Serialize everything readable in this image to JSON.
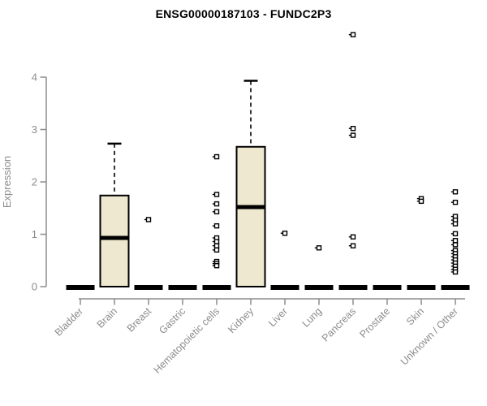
{
  "chart_data": {
    "type": "boxplot",
    "title": "ENSG00000187103 - FUNDC2P3",
    "xlabel": "",
    "ylabel": "Expression",
    "ylim": [
      0,
      4
    ],
    "yticks": [
      0,
      1,
      2,
      3,
      4
    ],
    "grid": false,
    "legend": null,
    "categories": [
      "Bladder",
      "Brain",
      "Breast",
      "Gastric",
      "Hematopoietic cells",
      "Kidney",
      "Liver",
      "Lung",
      "Pancreas",
      "Prostate",
      "Skin",
      "Unknown / Other"
    ],
    "boxes": [
      {
        "category": "Bladder",
        "min": 0,
        "q1": 0,
        "median": 0,
        "q3": 0,
        "max": 0,
        "outliers": []
      },
      {
        "category": "Brain",
        "min": 0,
        "q1": 0,
        "median": 0.93,
        "q3": 1.74,
        "max": 2.73,
        "outliers": []
      },
      {
        "category": "Breast",
        "min": 0,
        "q1": 0,
        "median": 0,
        "q3": 0,
        "max": 0,
        "outliers": [
          1.28
        ]
      },
      {
        "category": "Gastric",
        "min": 0,
        "q1": 0,
        "median": 0,
        "q3": 0,
        "max": 0,
        "outliers": []
      },
      {
        "category": "Hematopoietic cells",
        "min": 0,
        "q1": 0,
        "median": 0,
        "q3": 0,
        "max": 0,
        "outliers": [
          2.48,
          1.76,
          1.58,
          1.43,
          1.16,
          0.93,
          0.86,
          0.78,
          0.7,
          0.48,
          0.44,
          0.4
        ]
      },
      {
        "category": "Kidney",
        "min": 0,
        "q1": 0,
        "median": 1.52,
        "q3": 2.67,
        "max": 3.93,
        "outliers": []
      },
      {
        "category": "Liver",
        "min": 0,
        "q1": 0,
        "median": 0,
        "q3": 0,
        "max": 0,
        "outliers": [
          1.02
        ]
      },
      {
        "category": "Lung",
        "min": 0,
        "q1": 0,
        "median": 0,
        "q3": 0,
        "max": 0,
        "outliers": [
          0.74
        ]
      },
      {
        "category": "Pancreas",
        "min": 0,
        "q1": 0,
        "median": 0,
        "q3": 0,
        "max": 0,
        "outliers": [
          4.81,
          3.02,
          2.89,
          0.95,
          0.78
        ]
      },
      {
        "category": "Prostate",
        "min": 0,
        "q1": 0,
        "median": 0,
        "q3": 0,
        "max": 0,
        "outliers": []
      },
      {
        "category": "Skin",
        "min": 0,
        "q1": 0,
        "median": 0,
        "q3": 0,
        "max": 0,
        "outliers": [
          1.68,
          1.63
        ]
      },
      {
        "category": "Unknown / Other",
        "min": 0,
        "q1": 0,
        "median": 0,
        "q3": 0,
        "max": 0,
        "outliers": [
          1.81,
          1.61,
          1.34,
          1.27,
          1.2,
          1.01,
          0.88,
          0.8,
          0.69,
          0.63,
          0.57,
          0.51,
          0.45,
          0.39,
          0.33,
          0.28
        ]
      }
    ],
    "colors": {
      "box_fill": "#EDE8CF",
      "box_stroke": "#000000",
      "axis": "#8C8C8C",
      "title_color": "#000000",
      "background": "#FFFFFF"
    }
  }
}
